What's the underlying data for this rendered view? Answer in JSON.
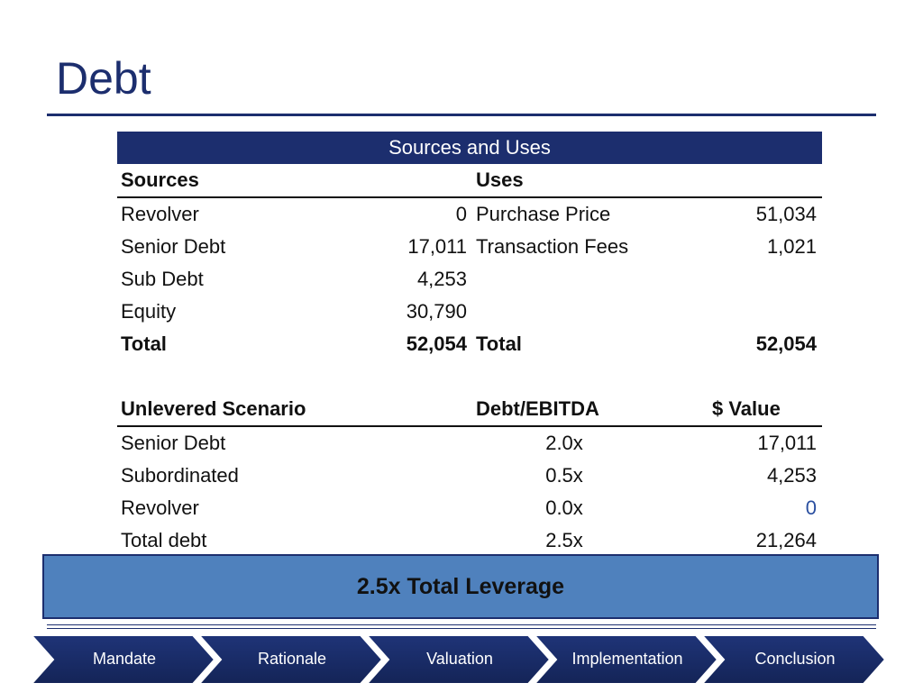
{
  "page": {
    "title": "Debt"
  },
  "sources_uses": {
    "header": "Sources and Uses",
    "sources_label": "Sources",
    "uses_label": "Uses",
    "rows": [
      {
        "source": "Revolver",
        "source_value": "0",
        "use": "Purchase Price",
        "use_value": "51,034"
      },
      {
        "source": "Senior Debt",
        "source_value": "17,011",
        "use": "Transaction Fees",
        "use_value": "1,021"
      },
      {
        "source": "Sub Debt",
        "source_value": "4,253",
        "use": "",
        "use_value": ""
      },
      {
        "source": "Equity",
        "source_value": "30,790",
        "use": "",
        "use_value": ""
      }
    ],
    "total": {
      "source": "Total",
      "source_value": "52,054",
      "use": "Total",
      "use_value": "52,054"
    }
  },
  "scenario": {
    "header": "Unlevered Scenario",
    "multiple_label": "Debt/EBITDA",
    "value_label": "$ Value",
    "rows": [
      {
        "name": "Senior Debt",
        "multiple": "2.0x",
        "value": "17,011"
      },
      {
        "name": "Subordinated",
        "multiple": "0.5x",
        "value": "4,253"
      },
      {
        "name": "Revolver",
        "multiple": "0.0x",
        "value": "0"
      },
      {
        "name": "Total debt",
        "multiple": "2.5x",
        "value": "21,264"
      }
    ]
  },
  "leverage_callout": "2.5x Total Leverage",
  "nav": {
    "items": [
      "Mandate",
      "Rationale",
      "Valuation",
      "Implementation",
      "Conclusion"
    ]
  },
  "colors": {
    "navy": "#1c2e6e",
    "callout_blue": "#4f81bd",
    "value_blue": "#2a4fa0"
  }
}
